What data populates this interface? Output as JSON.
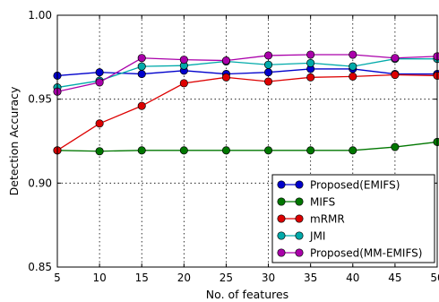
{
  "chart_data": {
    "type": "line",
    "title": "",
    "xlabel": "No. of features",
    "ylabel": "Detection Accuracy",
    "xlim": [
      5,
      50
    ],
    "ylim": [
      0.85,
      1.0
    ],
    "x": [
      5,
      10,
      15,
      20,
      25,
      30,
      35,
      40,
      45,
      50
    ],
    "x_tick_labels": [
      "5",
      "10",
      "15",
      "20",
      "25",
      "30",
      "35",
      "40",
      "45",
      "50"
    ],
    "y_ticks": [
      0.85,
      0.9,
      0.95,
      1.0
    ],
    "y_tick_labels": [
      "0.85",
      "0.90",
      "0.95",
      "1.00"
    ],
    "grid": true,
    "legend_position": "lower-right",
    "series": [
      {
        "name": "Proposed(EMIFS)",
        "color": "#0000cc",
        "values": [
          0.964,
          0.966,
          0.965,
          0.967,
          0.965,
          0.966,
          0.968,
          0.968,
          0.965,
          0.965
        ]
      },
      {
        "name": "MIFS",
        "color": "#007700",
        "values": [
          0.9195,
          0.919,
          0.9195,
          0.9195,
          0.9195,
          0.9195,
          0.9195,
          0.9195,
          0.9215,
          0.9245
        ]
      },
      {
        "name": "mRMR",
        "color": "#dd0000",
        "values": [
          0.9195,
          0.9355,
          0.946,
          0.9595,
          0.963,
          0.9605,
          0.963,
          0.9635,
          0.9645,
          0.964
        ]
      },
      {
        "name": "JMI",
        "color": "#00aaaa",
        "values": [
          0.957,
          0.961,
          0.9695,
          0.97,
          0.9725,
          0.9705,
          0.9715,
          0.9695,
          0.974,
          0.974
        ]
      },
      {
        "name": "Proposed(MM-EMIFS)",
        "color": "#aa00aa",
        "values": [
          0.9545,
          0.96,
          0.9745,
          0.9735,
          0.973,
          0.976,
          0.9765,
          0.9765,
          0.9745,
          0.9755
        ]
      }
    ]
  }
}
